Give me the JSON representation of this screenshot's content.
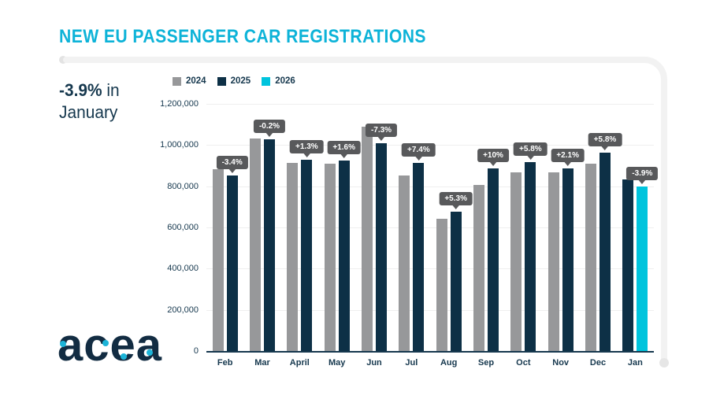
{
  "page": {
    "title": "NEW EU PASSENGER CAR REGISTRATIONS",
    "highlight": {
      "value": "-3.9%",
      "rest_line1": " in",
      "line2": "January"
    },
    "logo_text": "acea"
  },
  "colors": {
    "title_cyan": "#0db3d8",
    "navy": "#16384e",
    "bar_gray": "#97989a",
    "bar_navy": "#0d3046",
    "bar_cyan": "#00c4dd",
    "tooltip_bg": "#58595b",
    "gridline": "#efefef",
    "deco_line": "#f2f2f2"
  },
  "chart_data": {
    "type": "bar",
    "title": "New EU passenger car registrations by month",
    "categories": [
      "Feb",
      "Mar",
      "April",
      "May",
      "Jun",
      "Jul",
      "Aug",
      "Sep",
      "Oct",
      "Nov",
      "Dec",
      "Jan"
    ],
    "series": [
      {
        "name": "2024",
        "color": "#97989a",
        "values": [
          883000,
          1030000,
          915000,
          910000,
          1090000,
          852000,
          643000,
          807000,
          866000,
          869000,
          910000,
          null
        ]
      },
      {
        "name": "2025",
        "color": "#0d3046",
        "values": [
          853000,
          1028000,
          927000,
          925000,
          1010000,
          915000,
          677000,
          888000,
          916000,
          887000,
          963000,
          832000
        ]
      },
      {
        "name": "2026",
        "color": "#00c4dd",
        "values": [
          null,
          null,
          null,
          null,
          null,
          null,
          null,
          null,
          null,
          null,
          null,
          800000
        ]
      }
    ],
    "point_labels": [
      "-3.4%",
      "-0.2%",
      "+1.3%",
      "+1.6%",
      "-7.3%",
      "+7.4%",
      "+5.3%",
      "+10%",
      "+5.8%",
      "+2.1%",
      "+5.8%",
      "-3.9%"
    ],
    "ylim": [
      0,
      1200000
    ],
    "ytick_step": 200000,
    "ytick_labels": [
      "0",
      "200,000",
      "400,000",
      "600,000",
      "800,000",
      "1,000,000",
      "1,200,000"
    ],
    "xlabel": "",
    "ylabel": "",
    "legend_position": "top-left",
    "grid": true
  }
}
